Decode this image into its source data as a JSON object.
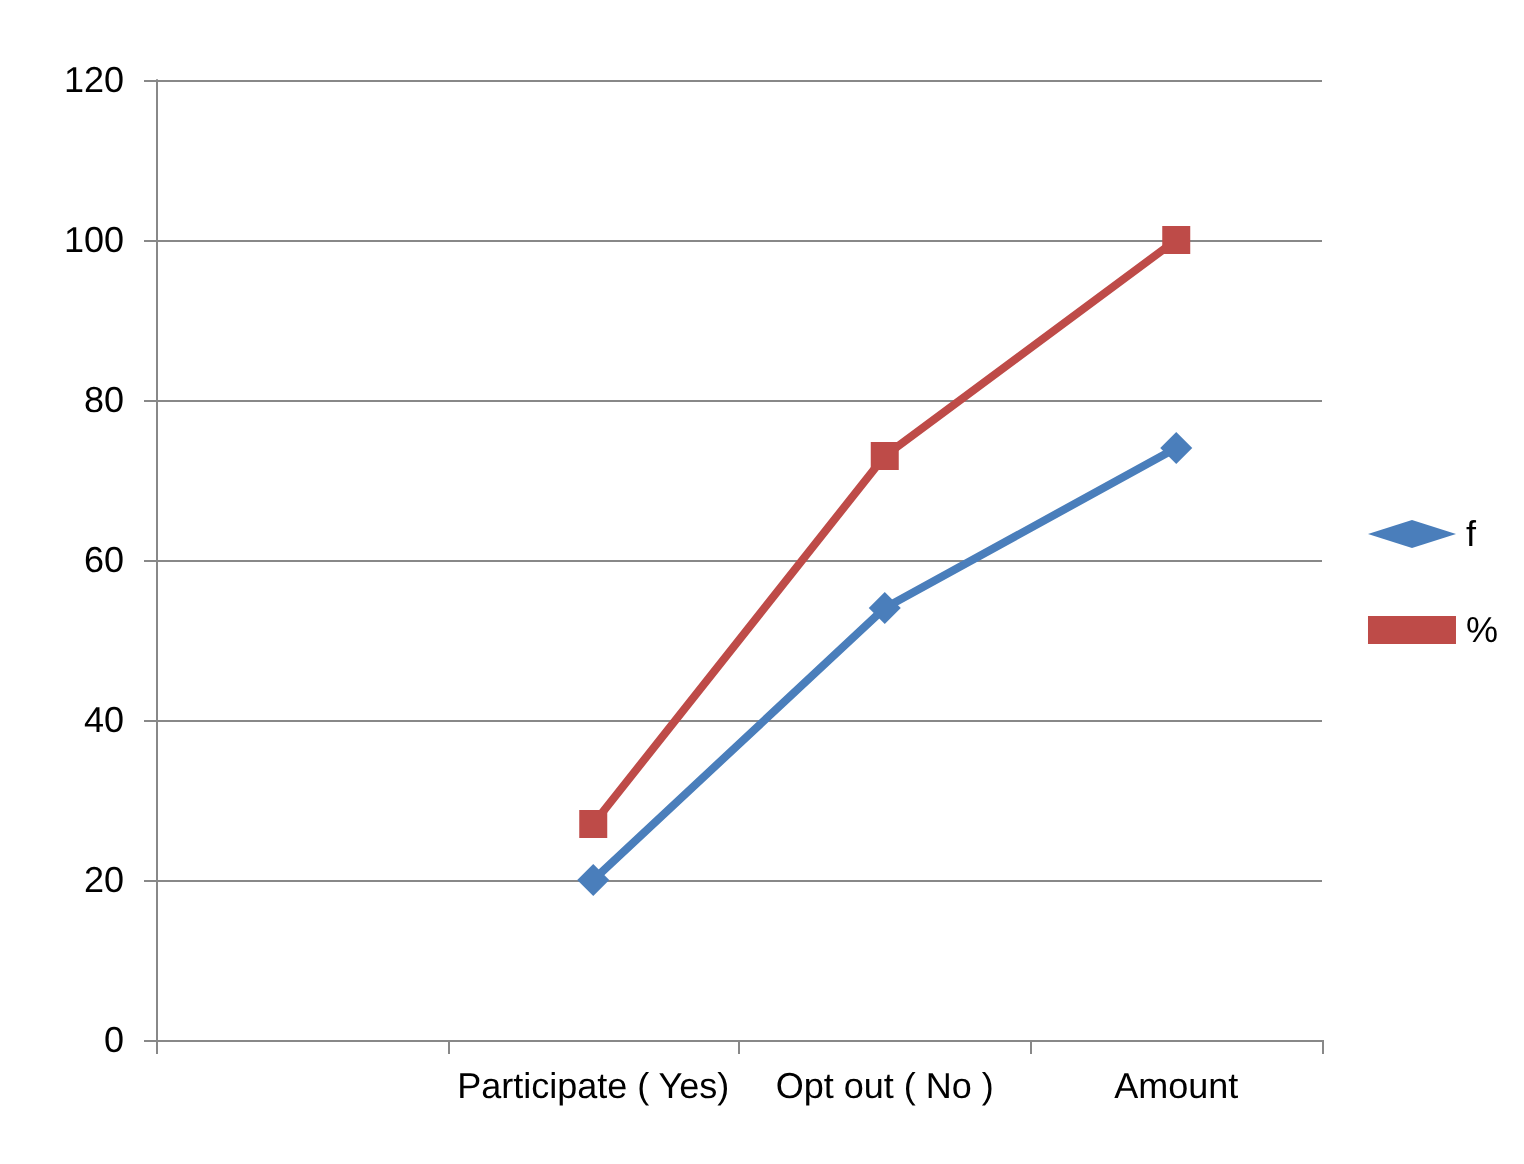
{
  "chart_data": {
    "type": "line",
    "categories": [
      null,
      "Participate ( Yes)",
      "Opt out ( No )",
      "Amount"
    ],
    "series": [
      {
        "name": "f",
        "color": "#4a7ebb",
        "marker": "diamond",
        "values": [
          null,
          20,
          54,
          74
        ]
      },
      {
        "name": "%",
        "color": "#be4b48",
        "marker": "square",
        "values": [
          null,
          27,
          73,
          100
        ]
      }
    ],
    "ylim": [
      0,
      120
    ],
    "yticks": [
      0,
      20,
      40,
      60,
      80,
      100,
      120
    ],
    "grid": "y",
    "legend": "right",
    "line_style": "solid"
  }
}
